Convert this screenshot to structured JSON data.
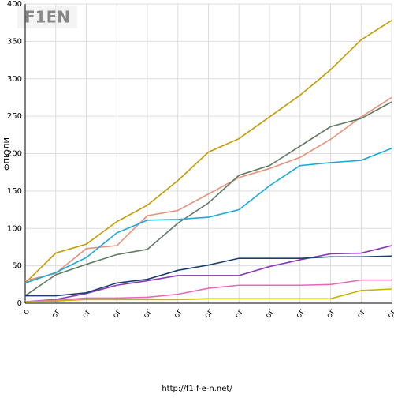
{
  "chart_data": {
    "type": "line",
    "logo": "F1EN",
    "ylabel": "ФПЮЛИ",
    "footer": "http://f1.f-e-n.net/",
    "categories": [
      "о",
      "ог",
      "ог",
      "ог",
      "ог",
      "ог",
      "ог",
      "ог",
      "ог",
      "ог",
      "ог",
      "ог",
      "ог"
    ],
    "series": [
      {
        "color": "#c49a00",
        "values": [
          27,
          67,
          79,
          109,
          131,
          164,
          202,
          220,
          249,
          278,
          312,
          352,
          378
        ]
      },
      {
        "color": "#e8907a",
        "values": [
          30,
          40,
          73,
          77,
          117,
          124,
          146,
          168,
          180,
          195,
          219,
          249,
          275
        ]
      },
      {
        "color": "#5e7a60",
        "values": [
          10,
          38,
          52,
          65,
          72,
          107,
          134,
          171,
          184,
          210,
          236,
          247,
          269
        ]
      },
      {
        "color": "#1aa8e0",
        "values": [
          27,
          41,
          61,
          94,
          111,
          112,
          115,
          125,
          157,
          184,
          188,
          191,
          207
        ]
      },
      {
        "color": "#8a3ab8",
        "values": [
          2,
          5,
          13,
          24,
          30,
          37,
          37,
          37,
          49,
          58,
          66,
          67,
          77
        ]
      },
      {
        "color": "#1a3e70",
        "values": [
          10,
          10,
          14,
          27,
          32,
          44,
          51,
          60,
          60,
          60,
          62,
          62,
          63
        ]
      },
      {
        "color": "#e868b8",
        "values": [
          2,
          4,
          7,
          7,
          8,
          12,
          20,
          24,
          24,
          24,
          25,
          31,
          31
        ]
      },
      {
        "color": "#c8b400",
        "values": [
          2,
          3,
          5,
          5,
          5,
          5,
          6,
          6,
          6,
          6,
          6,
          17,
          19
        ]
      }
    ],
    "ylim": [
      0,
      400
    ],
    "yticks": [
      0,
      50,
      100,
      150,
      200,
      250,
      300,
      350,
      400
    ],
    "grid": true
  }
}
